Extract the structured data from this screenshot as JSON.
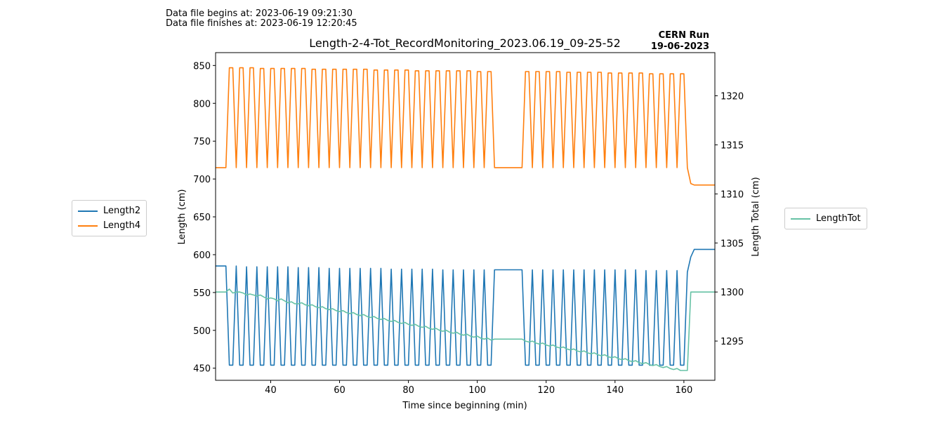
{
  "header": {
    "begins": "Data file begins at: 2023-06-19 09:21:30",
    "finishes": "Data file finishes at: 2023-06-19 12:20:45"
  },
  "chart_data": {
    "type": "line",
    "title": "Length-2-4-Tot_RecordMonitoring_2023.06.19_09-25-52",
    "run_label_line1": "CERN Run",
    "run_label_line2": "19-06-2023",
    "xlabel": "Time since beginning (min)",
    "ylabel_left": "Length (cm)",
    "ylabel_right": "Length Total (cm)",
    "xlim": [
      24,
      169
    ],
    "ylim_left": [
      434,
      867
    ],
    "ylim_right": [
      1291,
      1324.4
    ],
    "xticks": [
      40,
      60,
      80,
      100,
      120,
      140,
      160
    ],
    "yticks_left": [
      450,
      500,
      550,
      600,
      650,
      700,
      750,
      800,
      850
    ],
    "yticks_right": [
      1295,
      1300,
      1305,
      1310,
      1315,
      1320
    ],
    "colors": {
      "Length2": "#1f77b4",
      "Length4": "#ff7f0e",
      "LengthTot": "#66c2a5"
    },
    "series": [
      {
        "name": "Length2",
        "axis": "left",
        "x": [
          24,
          27,
          28,
          29,
          30,
          31,
          32,
          33,
          34,
          35,
          36,
          37,
          38,
          39,
          40,
          41,
          42,
          43,
          44,
          45,
          46,
          47,
          48,
          49,
          50,
          51,
          52,
          53,
          54,
          55,
          56,
          57,
          58,
          59,
          60,
          61,
          62,
          63,
          64,
          65,
          66,
          67,
          68,
          69,
          70,
          71,
          72,
          73,
          74,
          75,
          76,
          77,
          78,
          79,
          80,
          81,
          82,
          83,
          84,
          85,
          86,
          87,
          88,
          89,
          90,
          91,
          92,
          93,
          94,
          95,
          96,
          97,
          98,
          99,
          100,
          101,
          102,
          103,
          104,
          105,
          113,
          114,
          115,
          116,
          117,
          118,
          119,
          120,
          121,
          122,
          123,
          124,
          125,
          126,
          127,
          128,
          129,
          130,
          131,
          132,
          133,
          134,
          135,
          136,
          137,
          138,
          139,
          140,
          141,
          142,
          143,
          144,
          145,
          146,
          147,
          148,
          149,
          150,
          151,
          152,
          153,
          154,
          155,
          156,
          157,
          158,
          159,
          160,
          161,
          162,
          163,
          169
        ],
        "y": [
          585,
          585,
          454,
          454,
          585,
          454,
          454,
          584,
          454,
          454,
          584,
          454,
          454,
          584,
          454,
          454,
          584,
          454,
          454,
          584,
          454,
          454,
          583,
          454,
          454,
          583,
          454,
          454,
          583,
          454,
          454,
          582,
          454,
          454,
          582,
          454,
          454,
          582,
          454,
          454,
          582,
          454,
          454,
          582,
          454,
          454,
          582,
          454,
          454,
          581,
          454,
          454,
          581,
          454,
          454,
          581,
          454,
          454,
          581,
          454,
          454,
          581,
          454,
          454,
          580,
          454,
          454,
          580,
          454,
          454,
          580,
          454,
          454,
          580,
          454,
          454,
          580,
          454,
          454,
          580,
          580,
          454,
          454,
          580,
          454,
          454,
          580,
          454,
          454,
          580,
          454,
          454,
          580,
          454,
          454,
          580,
          454,
          454,
          580,
          454,
          454,
          580,
          454,
          454,
          580,
          454,
          454,
          580,
          454,
          454,
          580,
          454,
          454,
          580,
          454,
          454,
          579,
          454,
          454,
          579,
          454,
          454,
          579,
          454,
          454,
          579,
          454,
          454,
          577,
          597,
          607,
          607
        ]
      },
      {
        "name": "Length4",
        "axis": "left",
        "x": [
          24,
          27,
          28,
          29,
          30,
          31,
          32,
          33,
          34,
          35,
          36,
          37,
          38,
          39,
          40,
          41,
          42,
          43,
          44,
          45,
          46,
          47,
          48,
          49,
          50,
          51,
          52,
          53,
          54,
          55,
          56,
          57,
          58,
          59,
          60,
          61,
          62,
          63,
          64,
          65,
          66,
          67,
          68,
          69,
          70,
          71,
          72,
          73,
          74,
          75,
          76,
          77,
          78,
          79,
          80,
          81,
          82,
          83,
          84,
          85,
          86,
          87,
          88,
          89,
          90,
          91,
          92,
          93,
          94,
          95,
          96,
          97,
          98,
          99,
          100,
          101,
          102,
          103,
          104,
          105,
          113,
          114,
          115,
          116,
          117,
          118,
          119,
          120,
          121,
          122,
          123,
          124,
          125,
          126,
          127,
          128,
          129,
          130,
          131,
          132,
          133,
          134,
          135,
          136,
          137,
          138,
          139,
          140,
          141,
          142,
          143,
          144,
          145,
          146,
          147,
          148,
          149,
          150,
          151,
          152,
          153,
          154,
          155,
          156,
          157,
          158,
          159,
          160,
          161,
          162,
          163,
          169
        ],
        "y": [
          715,
          715,
          847,
          847,
          715,
          847,
          847,
          715,
          847,
          847,
          715,
          846,
          846,
          715,
          846,
          846,
          715,
          846,
          846,
          715,
          846,
          846,
          715,
          846,
          846,
          715,
          845,
          845,
          715,
          845,
          845,
          715,
          845,
          845,
          715,
          845,
          845,
          715,
          845,
          845,
          715,
          845,
          845,
          715,
          844,
          844,
          715,
          844,
          844,
          715,
          844,
          844,
          715,
          844,
          844,
          715,
          843,
          843,
          715,
          843,
          843,
          715,
          843,
          843,
          715,
          843,
          843,
          715,
          843,
          843,
          715,
          843,
          843,
          715,
          842,
          842,
          715,
          842,
          842,
          715,
          715,
          842,
          842,
          715,
          842,
          842,
          715,
          842,
          842,
          715,
          842,
          842,
          715,
          841,
          841,
          715,
          841,
          841,
          715,
          841,
          841,
          715,
          841,
          841,
          715,
          840,
          840,
          715,
          840,
          840,
          715,
          840,
          840,
          715,
          840,
          840,
          715,
          839,
          839,
          715,
          839,
          839,
          715,
          839,
          839,
          715,
          839,
          839,
          715,
          694,
          692,
          692
        ]
      },
      {
        "name": "LengthTot",
        "axis": "right",
        "x": [
          24,
          27,
          28,
          29,
          30,
          31,
          32,
          33,
          34,
          35,
          36,
          37,
          38,
          39,
          40,
          41,
          42,
          43,
          44,
          45,
          46,
          47,
          48,
          49,
          50,
          51,
          52,
          53,
          54,
          55,
          56,
          57,
          58,
          59,
          60,
          61,
          62,
          63,
          64,
          65,
          66,
          67,
          68,
          69,
          70,
          71,
          72,
          73,
          74,
          75,
          76,
          77,
          78,
          79,
          80,
          81,
          82,
          83,
          84,
          85,
          86,
          87,
          88,
          89,
          90,
          91,
          92,
          93,
          94,
          95,
          96,
          97,
          98,
          99,
          100,
          101,
          102,
          103,
          104,
          105,
          113,
          114,
          115,
          116,
          117,
          118,
          119,
          120,
          121,
          122,
          123,
          124,
          125,
          126,
          127,
          128,
          129,
          130,
          131,
          132,
          133,
          134,
          135,
          136,
          137,
          138,
          139,
          140,
          141,
          142,
          143,
          144,
          145,
          146,
          147,
          148,
          149,
          150,
          151,
          152,
          153,
          154,
          155,
          156,
          157,
          158,
          159,
          160,
          161,
          162,
          163,
          169
        ],
        "y": [
          1300,
          1300,
          1300.3,
          1299.9,
          1300,
          1300,
          1299.9,
          1299.7,
          1299.8,
          1299.7,
          1299.6,
          1299.7,
          1299.5,
          1299.3,
          1299.4,
          1299.3,
          1299.1,
          1299.3,
          1299.1,
          1298.9,
          1299,
          1298.8,
          1298.8,
          1298.9,
          1298.7,
          1298.6,
          1298.7,
          1298.5,
          1298.4,
          1298.5,
          1298.3,
          1298.2,
          1298.3,
          1298.1,
          1298.0,
          1298.1,
          1297.9,
          1297.8,
          1297.9,
          1297.7,
          1297.6,
          1297.7,
          1297.5,
          1297.4,
          1297.5,
          1297.3,
          1297.2,
          1297.3,
          1297.1,
          1297,
          1297.1,
          1296.9,
          1296.8,
          1296.9,
          1296.7,
          1296.6,
          1296.7,
          1296.5,
          1296.4,
          1296.5,
          1296.3,
          1296.2,
          1296.3,
          1296.1,
          1296,
          1296.1,
          1295.9,
          1295.8,
          1295.9,
          1295.7,
          1295.6,
          1295.7,
          1295.5,
          1295.4,
          1295.5,
          1295.3,
          1295.2,
          1295.3,
          1295.1,
          1295.2,
          1295.2,
          1295,
          1294.9,
          1295,
          1294.8,
          1294.7,
          1294.8,
          1294.6,
          1294.5,
          1294.6,
          1294.4,
          1294.3,
          1294.4,
          1294.2,
          1294.1,
          1294.2,
          1294,
          1293.9,
          1294,
          1293.8,
          1293.7,
          1293.8,
          1293.6,
          1293.5,
          1293.6,
          1293.4,
          1293.3,
          1293.4,
          1293.2,
          1293.1,
          1293.2,
          1293,
          1292.9,
          1293,
          1292.8,
          1292.7,
          1292.8,
          1292.6,
          1292.5,
          1292.6,
          1292.4,
          1292.3,
          1292.4,
          1292.2,
          1292.1,
          1292.2,
          1292,
          1292,
          1292,
          1300,
          1300,
          1300
        ]
      }
    ]
  }
}
